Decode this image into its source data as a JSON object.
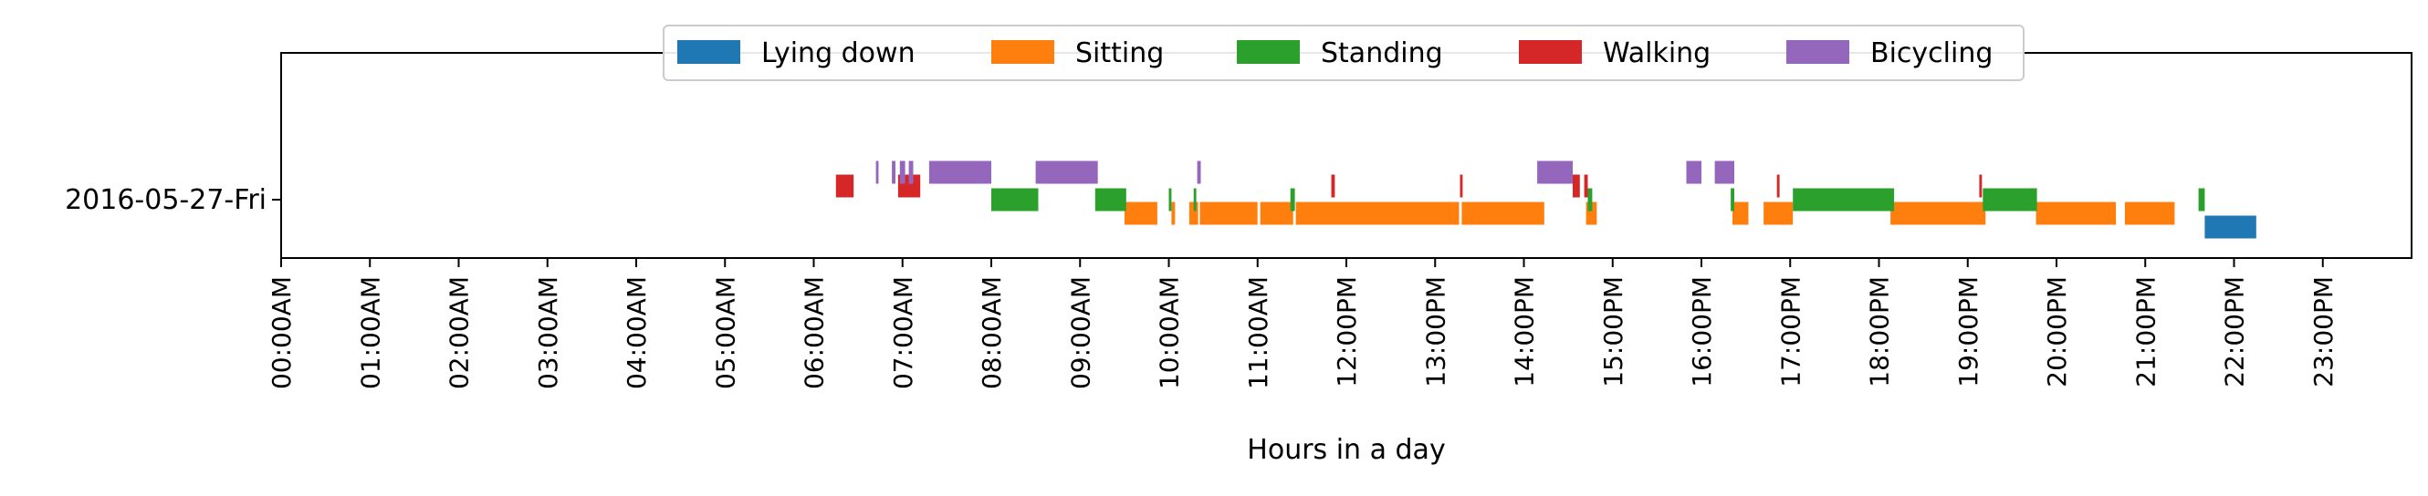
{
  "chart_data": {
    "type": "timeline",
    "title": "",
    "xlabel": "Hours in a day",
    "ylabel": "",
    "xlim": [
      0,
      24
    ],
    "x_ticks": [
      "00:00AM",
      "01:00AM",
      "02:00AM",
      "03:00AM",
      "04:00AM",
      "05:00AM",
      "06:00AM",
      "07:00AM",
      "08:00AM",
      "09:00AM",
      "10:00AM",
      "11:00AM",
      "12:00PM",
      "13:00PM",
      "14:00PM",
      "15:00PM",
      "16:00PM",
      "17:00PM",
      "18:00PM",
      "19:00PM",
      "20:00PM",
      "21:00PM",
      "22:00PM",
      "23:00PM"
    ],
    "categories": [
      "2016-05-27-Fri"
    ],
    "legend_position": "top-center",
    "grid": false,
    "series": [
      {
        "name": "Lying down",
        "color": "#1f77b4",
        "intervals": [
          [
            21.67,
            22.25
          ]
        ]
      },
      {
        "name": "Sitting",
        "color": "#ff7f0e",
        "intervals": [
          [
            9.5,
            9.87
          ],
          [
            10.03,
            10.07
          ],
          [
            10.23,
            10.33
          ],
          [
            10.35,
            11.0
          ],
          [
            11.03,
            11.4
          ],
          [
            11.43,
            13.27
          ],
          [
            13.3,
            14.23
          ],
          [
            14.7,
            14.82
          ],
          [
            16.35,
            16.53
          ],
          [
            16.7,
            17.03
          ],
          [
            18.13,
            19.2
          ],
          [
            19.77,
            20.67
          ],
          [
            20.77,
            21.33
          ]
        ]
      },
      {
        "name": "Standing",
        "color": "#2ca02c",
        "intervals": [
          [
            8.0,
            8.53
          ],
          [
            9.17,
            9.52
          ],
          [
            10.0,
            10.03
          ],
          [
            10.28,
            10.31
          ],
          [
            11.37,
            11.42
          ],
          [
            14.72,
            14.77
          ],
          [
            16.33,
            16.37
          ],
          [
            17.03,
            18.17
          ],
          [
            19.17,
            19.78
          ],
          [
            21.6,
            21.67
          ]
        ]
      },
      {
        "name": "Walking",
        "color": "#d62728",
        "intervals": [
          [
            6.25,
            6.45
          ],
          [
            6.95,
            7.2
          ],
          [
            11.83,
            11.87
          ],
          [
            13.28,
            13.31
          ],
          [
            14.55,
            14.63
          ],
          [
            14.68,
            14.72
          ],
          [
            16.85,
            16.88
          ],
          [
            19.13,
            19.16
          ]
        ]
      },
      {
        "name": "Bicycling",
        "color": "#9467bd",
        "intervals": [
          [
            6.7,
            6.73
          ],
          [
            6.88,
            6.92
          ],
          [
            6.97,
            7.03
          ],
          [
            7.07,
            7.12
          ],
          [
            7.3,
            8.0
          ],
          [
            8.5,
            9.2
          ],
          [
            10.32,
            10.36
          ],
          [
            14.15,
            14.55
          ],
          [
            15.83,
            16.0
          ],
          [
            16.15,
            16.37
          ]
        ]
      }
    ]
  }
}
